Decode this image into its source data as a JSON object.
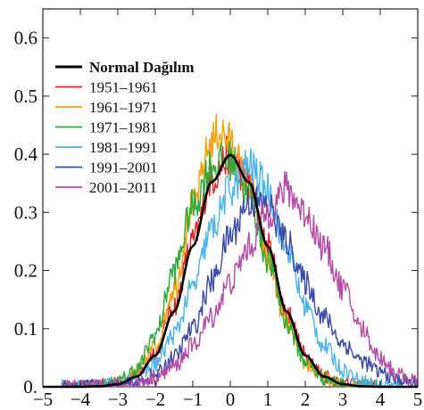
{
  "chart_data": {
    "type": "line",
    "title": "",
    "xlabel": "",
    "ylabel": "",
    "xlim": [
      -5,
      5
    ],
    "ylim": [
      0,
      0.65
    ],
    "x_ticks": [
      -5,
      -4,
      -3,
      -2,
      -1,
      0,
      1,
      2,
      3,
      4,
      5
    ],
    "x_tick_labels": [
      "−5",
      "−4",
      "−3",
      "−2",
      "−1",
      "0",
      "1",
      "2",
      "3",
      "4",
      "5"
    ],
    "y_ticks": [
      0,
      0.1,
      0.2,
      0.3,
      0.4,
      0.5,
      0.6
    ],
    "y_tick_labels": [
      "0.",
      "0.1",
      "0.2",
      "0.3",
      "0.4",
      "0.5",
      "0.6"
    ],
    "grid": false,
    "legend_position": "top-left",
    "series": [
      {
        "name": "Normal Dağılım",
        "color": "#000000",
        "style": "bold",
        "x": [
          -5,
          -4,
          -3.5,
          -3,
          -2.5,
          -2,
          -1.5,
          -1,
          -0.5,
          0,
          0.5,
          1,
          1.5,
          2,
          2.5,
          3,
          3.5,
          4,
          5
        ],
        "y": [
          0.0,
          0.0001,
          0.0009,
          0.0044,
          0.0175,
          0.054,
          0.1295,
          0.242,
          0.352,
          0.399,
          0.352,
          0.242,
          0.1295,
          0.054,
          0.0175,
          0.0044,
          0.0009,
          0.0001,
          0.0
        ]
      },
      {
        "name": "1951–1961",
        "color": "#e8242a",
        "x": [
          -4.5,
          -4,
          -3.5,
          -3,
          -2.5,
          -2,
          -1.5,
          -1,
          -0.5,
          0,
          0.5,
          1,
          1.5,
          2,
          2.5,
          3,
          3.5,
          4
        ],
        "y": [
          0.0,
          0.0,
          0.002,
          0.006,
          0.02,
          0.06,
          0.14,
          0.25,
          0.36,
          0.4,
          0.35,
          0.24,
          0.13,
          0.055,
          0.02,
          0.006,
          0.002,
          0.0
        ]
      },
      {
        "name": "1961–1971",
        "color": "#f2a20c",
        "x": [
          -4.5,
          -4,
          -3.5,
          -3,
          -2.5,
          -2,
          -1.5,
          -1,
          -0.5,
          -0.3,
          0,
          0.5,
          1,
          1.5,
          2,
          2.5,
          3,
          3.5,
          4
        ],
        "y": [
          0.0,
          0.0,
          0.001,
          0.005,
          0.02,
          0.07,
          0.17,
          0.31,
          0.42,
          0.44,
          0.42,
          0.34,
          0.22,
          0.11,
          0.04,
          0.012,
          0.003,
          0.001,
          0.0
        ]
      },
      {
        "name": "1971–1981",
        "color": "#2eaa3a",
        "x": [
          -4.5,
          -4,
          -3.5,
          -3,
          -2.5,
          -2,
          -1.5,
          -1,
          -0.5,
          0,
          0.5,
          1,
          1.5,
          2,
          2.5,
          3,
          3.5,
          4
        ],
        "y": [
          0.0,
          0.0,
          0.002,
          0.008,
          0.03,
          0.09,
          0.2,
          0.31,
          0.38,
          0.39,
          0.33,
          0.22,
          0.11,
          0.045,
          0.015,
          0.004,
          0.001,
          0.0
        ]
      },
      {
        "name": "1981–1991",
        "color": "#4db3ec",
        "x": [
          -4.5,
          -4,
          -3.5,
          -3,
          -2.5,
          -2,
          -1.5,
          -1,
          -0.5,
          0,
          0.5,
          1,
          1.5,
          2,
          2.5,
          3,
          3.5,
          4,
          4.5
        ],
        "y": [
          0.0,
          0.0,
          0.001,
          0.004,
          0.012,
          0.04,
          0.09,
          0.17,
          0.27,
          0.34,
          0.38,
          0.34,
          0.24,
          0.14,
          0.07,
          0.03,
          0.01,
          0.003,
          0.0
        ]
      },
      {
        "name": "1991–2001",
        "color": "#3a4aa8",
        "x": [
          -4.5,
          -4,
          -3.5,
          -3,
          -2.5,
          -2,
          -1.5,
          -1,
          -0.5,
          0,
          0.5,
          1,
          1.5,
          2,
          2.5,
          3,
          3.5,
          4,
          4.5,
          5
        ],
        "y": [
          0.0,
          0.0,
          0.0,
          0.002,
          0.007,
          0.02,
          0.05,
          0.1,
          0.18,
          0.26,
          0.32,
          0.31,
          0.25,
          0.18,
          0.12,
          0.075,
          0.045,
          0.025,
          0.012,
          0.005
        ]
      },
      {
        "name": "2001–2011",
        "color": "#b84aa7",
        "x": [
          -4.5,
          -4,
          -3.5,
          -3,
          -2.5,
          -2,
          -1.5,
          -1,
          -0.5,
          0,
          0.5,
          1,
          1.5,
          2,
          2.5,
          3,
          3.5,
          4,
          4.5,
          5
        ],
        "y": [
          0.0,
          0.0,
          0.0,
          0.001,
          0.005,
          0.015,
          0.035,
          0.07,
          0.12,
          0.18,
          0.24,
          0.3,
          0.34,
          0.3,
          0.24,
          0.17,
          0.1,
          0.05,
          0.02,
          0.008
        ]
      }
    ]
  }
}
